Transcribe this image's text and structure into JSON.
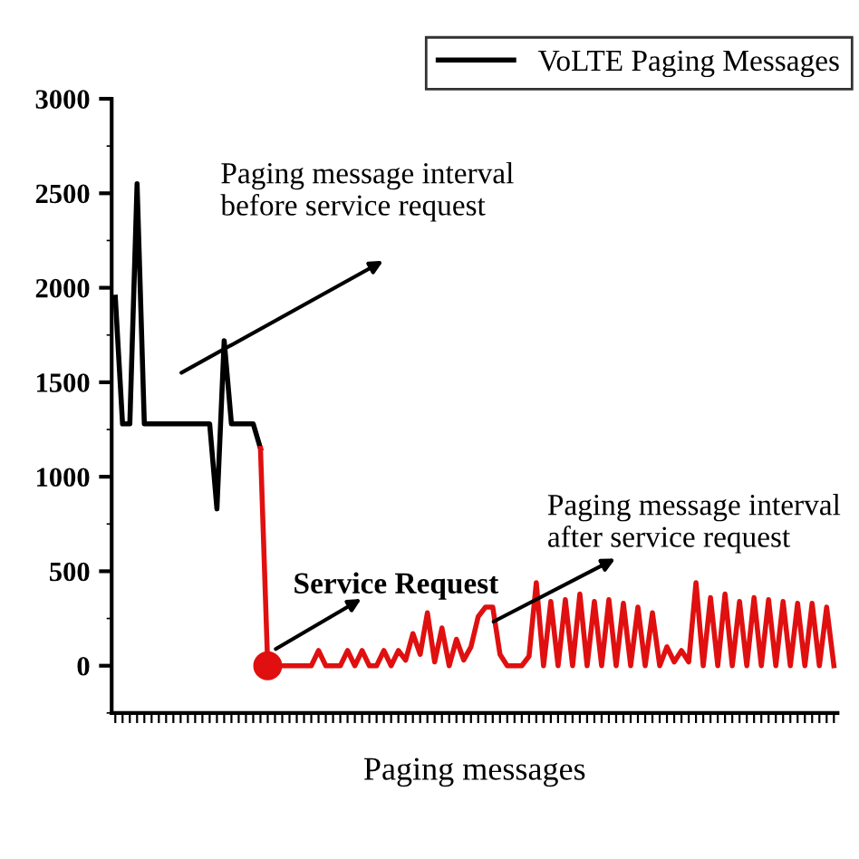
{
  "chart_data": {
    "type": "line",
    "xlabel": "Paging messages",
    "categories": [
      null,
      null,
      null,
      null,
      null,
      null,
      null,
      null,
      null,
      null,
      null,
      null,
      null,
      null,
      null,
      null,
      null,
      null,
      null,
      null,
      null,
      null,
      null,
      null,
      null,
      null,
      null,
      null,
      null,
      null,
      null,
      null,
      null,
      null,
      null,
      null,
      null,
      null,
      null,
      null,
      null,
      null,
      null,
      null,
      null,
      null,
      null,
      null,
      null,
      null,
      null,
      null,
      null,
      null,
      null,
      null,
      null,
      null,
      null,
      null,
      null,
      null,
      null,
      null,
      null,
      null,
      null,
      null,
      null,
      null,
      null,
      null,
      null,
      null,
      null,
      null,
      null,
      null,
      null,
      null,
      null,
      null,
      null,
      null,
      null,
      null,
      null,
      null,
      null,
      null,
      null,
      null,
      null,
      null,
      null,
      null,
      null,
      null,
      null,
      null
    ],
    "series": [
      {
        "name": "VoLTE Paging Messages",
        "color": "#000000",
        "values": [
          1950,
          1280,
          1280,
          2550,
          1280,
          1280,
          1280,
          1280,
          1280,
          1280,
          1280,
          1280,
          1280,
          1280,
          830,
          1720,
          1280,
          1280,
          1280,
          1280,
          1150,
          null,
          null,
          null,
          null,
          null,
          null,
          null,
          null,
          null,
          null,
          null,
          null,
          null,
          null,
          null,
          null,
          null,
          null,
          null,
          null,
          null,
          null,
          null,
          null,
          null,
          null,
          null,
          null,
          null,
          null,
          null,
          null,
          null,
          null,
          null,
          null,
          null,
          null,
          null,
          null,
          null,
          null,
          null,
          null,
          null,
          null,
          null,
          null,
          null,
          null,
          null,
          null,
          null,
          null,
          null,
          null,
          null,
          null,
          null,
          null,
          null,
          null,
          null,
          null,
          null,
          null,
          null,
          null,
          null,
          null,
          null,
          null,
          null,
          null,
          null,
          null,
          null,
          null,
          null
        ]
      },
      {
        "color": "#e01010",
        "values": [
          null,
          null,
          null,
          null,
          null,
          null,
          null,
          null,
          null,
          null,
          null,
          null,
          null,
          null,
          null,
          null,
          null,
          null,
          null,
          null,
          1150,
          0,
          0,
          0,
          0,
          0,
          0,
          0,
          80,
          0,
          0,
          0,
          80,
          0,
          80,
          0,
          0,
          80,
          0,
          80,
          30,
          170,
          60,
          280,
          20,
          200,
          0,
          140,
          30,
          100,
          260,
          310,
          310,
          60,
          0,
          0,
          0,
          50,
          440,
          0,
          340,
          0,
          350,
          0,
          380,
          0,
          340,
          0,
          350,
          0,
          330,
          0,
          310,
          0,
          280,
          0,
          100,
          20,
          80,
          20,
          440,
          0,
          360,
          0,
          380,
          0,
          340,
          0,
          360,
          0,
          350,
          0,
          340,
          0,
          330,
          0,
          330,
          0,
          310,
          0
        ]
      },
      {
        "type": "scatter",
        "marker": "circle",
        "color": "#e01010",
        "values": [
          null,
          null,
          null,
          null,
          null,
          null,
          null,
          null,
          null,
          null,
          null,
          null,
          null,
          null,
          null,
          null,
          null,
          null,
          null,
          null,
          null,
          0,
          null,
          null,
          null,
          null,
          null,
          null,
          null,
          null,
          null,
          null,
          null,
          null,
          null,
          null,
          null,
          null,
          null,
          null,
          null,
          null,
          null,
          null,
          null,
          null,
          null,
          null,
          null,
          null,
          null,
          null,
          null,
          null,
          null,
          null,
          null,
          null,
          null,
          null,
          null,
          null,
          null,
          null,
          null,
          null,
          null,
          null,
          null,
          null,
          null,
          null,
          null,
          null,
          null,
          null,
          null,
          null,
          null,
          null,
          null,
          null,
          null,
          null,
          null,
          null,
          null,
          null,
          null,
          null,
          null,
          null,
          null,
          null,
          null,
          null,
          null,
          null,
          null,
          null
        ]
      }
    ],
    "ylim": [
      -250,
      3000
    ],
    "yticks": [
      0,
      500,
      1000,
      1500,
      2000,
      2500,
      3000
    ],
    "legend": "top right",
    "grid": false,
    "annotations": [
      "Paging message interval\nbefore service request",
      "Service Request",
      "Paging message interval\nafter service request"
    ]
  }
}
